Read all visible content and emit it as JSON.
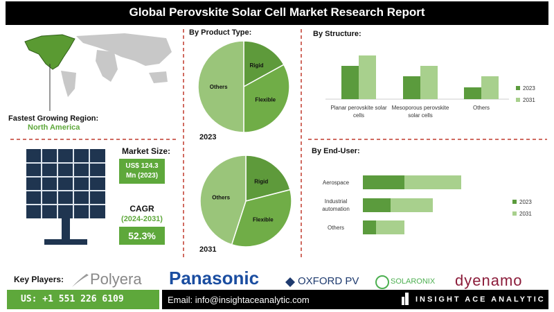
{
  "header": {
    "title": "Global Perovskite Solar Cell Market Research Report"
  },
  "region": {
    "label": "Fastest Growing Region:",
    "value": "North America"
  },
  "market_size": {
    "label": "Market Size:",
    "value": "US$ 124.3 Mn (2023)"
  },
  "cagr": {
    "label": "CAGR",
    "period": "(2024-2031)",
    "value": "52.3%"
  },
  "chart_data": [
    {
      "type": "pie",
      "title": "By Product Type:",
      "caption": "2023",
      "categories": [
        "Rigid",
        "Flexible",
        "Others"
      ],
      "values": [
        17,
        33,
        50
      ],
      "colors": [
        "#5e9a3b",
        "#70ad47",
        "#9ac57a"
      ]
    },
    {
      "type": "pie",
      "caption": "2031",
      "categories": [
        "Rigid",
        "Flexible",
        "Others"
      ],
      "values": [
        21,
        34,
        45
      ],
      "colors": [
        "#5e9a3b",
        "#70ad47",
        "#9ac57a"
      ]
    },
    {
      "type": "bar",
      "title": "By Structure:",
      "categories": [
        "Planar perovskite solar cells",
        "Mesoporous perovskite solar cells",
        "Others"
      ],
      "series": [
        {
          "name": "2023",
          "color": "#5b9b3d",
          "values": [
            48,
            33,
            17
          ]
        },
        {
          "name": "2031",
          "color": "#a8d08d",
          "values": [
            63,
            48,
            33
          ]
        }
      ],
      "legend": "right"
    },
    {
      "type": "hbar",
      "stacked": true,
      "title": "By End-User:",
      "categories": [
        "Aerospace",
        "Industrial automation",
        "Others"
      ],
      "series": [
        {
          "name": "2023",
          "color": "#5b9b3d",
          "values": [
            60,
            40,
            19
          ]
        },
        {
          "name": "2031",
          "color": "#a8d08d",
          "values": [
            82,
            61,
            41
          ]
        }
      ],
      "legend": "right"
    }
  ],
  "key_players": {
    "label": "Key Players:",
    "names": [
      "Polyera",
      "Panasonic",
      "OXFORD PV",
      "SOLARONIX",
      "dyenamo"
    ]
  },
  "footer": {
    "phone": "US: +1 551 226 6109",
    "email": "Email: info@insightaceanalytic.com",
    "brand": "INSIGHT ACE ANALYTIC"
  }
}
